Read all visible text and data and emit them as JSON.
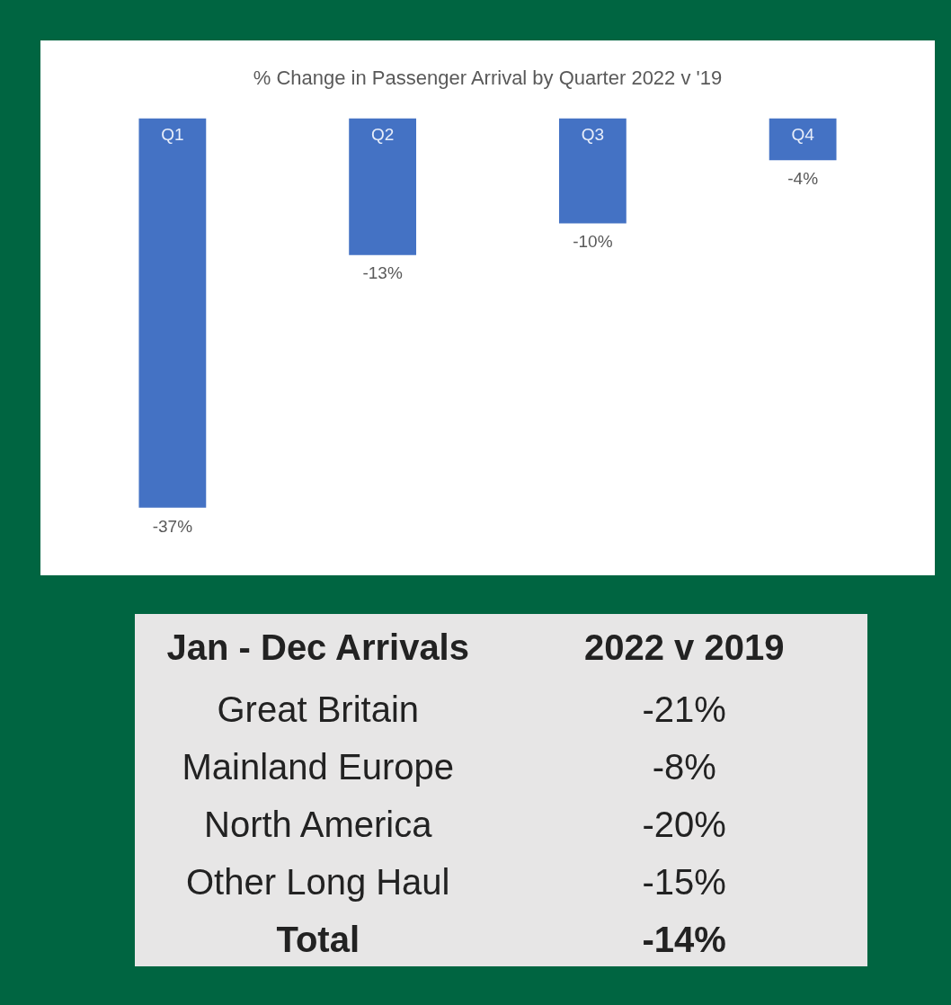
{
  "chart_data": [
    {
      "type": "bar",
      "title": "% Change in Passenger Arrival by Quarter 2022 v '19",
      "categories": [
        "Q1",
        "Q2",
        "Q3",
        "Q4"
      ],
      "values": [
        -37,
        -13,
        -10,
        -4
      ],
      "value_labels": [
        "-37%",
        "-13%",
        "-10%",
        "-4%"
      ],
      "color": "#4472c4",
      "grid": false,
      "legend": false
    },
    {
      "type": "other",
      "xlabel": "Jan - Dec Arrivals",
      "ylabel": "2022 v 2019",
      "categories": [
        "Great Britain",
        "Mainland Europe",
        "North America",
        "Other Long Haul",
        "Total"
      ],
      "value_labels": [
        "-21%",
        "-8%",
        "-20%",
        "-15%",
        "-14%"
      ]
    }
  ]
}
